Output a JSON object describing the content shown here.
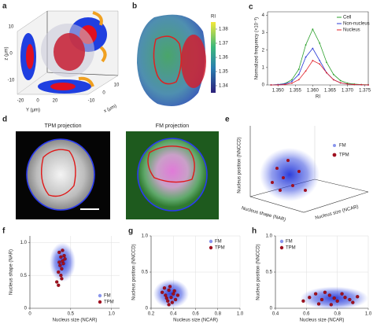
{
  "panel_a": {
    "label": "a",
    "z_label": "z (μm)",
    "y_label": "Y (μm)",
    "x_label": "x (μm)",
    "z_ticks": [
      10,
      0,
      -10
    ],
    "y_ticks": [
      -20,
      0,
      20
    ],
    "x_ticks": [
      -10,
      0,
      10
    ]
  },
  "panel_b": {
    "label": "b",
    "colorbar_label": "RI",
    "colorbar_lim": [
      1.335,
      1.385
    ],
    "colorbar_ticks": [
      1.38,
      1.37,
      1.36,
      1.35,
      1.34
    ]
  },
  "panel_d": {
    "label": "d",
    "titles": [
      "TPM projection",
      "FM projection"
    ]
  },
  "panel_e": {
    "label": "e",
    "z_label": "Nucleus position (NNCCD)",
    "y_label": "Nucleus shape (NAR)",
    "x_label": "Nucleus size (NCAR)",
    "legend": [
      "FM",
      "TPM"
    ]
  },
  "chart_data": [
    {
      "type": "line",
      "label": "c",
      "ylabel": "Normalized frequency (×10⁻³)",
      "xlabel": "RI",
      "x": [
        1.348,
        1.35,
        1.352,
        1.354,
        1.356,
        1.358,
        1.36,
        1.362,
        1.364,
        1.366,
        1.368,
        1.37,
        1.372,
        1.374,
        1.376
      ],
      "series": [
        {
          "name": "Cell",
          "color": "#2ca02c",
          "values": [
            0,
            0.02,
            0.08,
            0.3,
            0.9,
            2.3,
            3.2,
            2.4,
            1.3,
            0.6,
            0.25,
            0.1,
            0.05,
            0.02,
            0.01
          ]
        },
        {
          "name": "Non-nucleus",
          "color": "#2b3bd6",
          "values": [
            0,
            0.02,
            0.06,
            0.2,
            0.6,
            1.6,
            2.1,
            1.4,
            0.7,
            0.3,
            0.12,
            0.05,
            0.02,
            0.01,
            0
          ]
        },
        {
          "name": "Nucleus",
          "color": "#e0202a",
          "values": [
            0,
            0,
            0.02,
            0.1,
            0.3,
            0.8,
            1.4,
            1.2,
            0.7,
            0.3,
            0.12,
            0.05,
            0.02,
            0.01,
            0
          ]
        }
      ],
      "xlim": [
        1.347,
        1.376
      ],
      "ylim": [
        0,
        4.2
      ],
      "xticks": [
        {
          "value": 1.35,
          "label": "1.350"
        },
        1.355,
        {
          "value": 1.36,
          "label": "1.360"
        },
        1.365,
        {
          "value": 1.37,
          "label": "1.370"
        },
        1.375
      ],
      "yticks": [
        0,
        1,
        2,
        3,
        4
      ],
      "grid": false,
      "legend": "top-right"
    },
    {
      "type": "scatter",
      "label": "f",
      "xlabel": "Nucleus size (NCAR)",
      "ylabel": "Nucleus shape (NAR)",
      "xlim": [
        0,
        1.1
      ],
      "ylim": [
        0,
        1.1
      ],
      "xticks": [
        0,
        0.5,
        {
          "value": 1,
          "label": "1.0"
        }
      ],
      "yticks": [
        0,
        0.5,
        {
          "value": 1,
          "label": "1.0"
        }
      ],
      "grid": true,
      "legend": "bottom-right",
      "series": [
        {
          "name": "FM",
          "color": "#3b4fe0"
        },
        {
          "name": "TPM",
          "color": "#a01020",
          "x": [
            0.36,
            0.38,
            0.4,
            0.42,
            0.37,
            0.39,
            0.41,
            0.35,
            0.43,
            0.38,
            0.4,
            0.36,
            0.39,
            0.33,
            0.35
          ],
          "values": [
            0.85,
            0.78,
            0.72,
            0.8,
            0.65,
            0.6,
            0.68,
            0.55,
            0.75,
            0.5,
            0.88,
            0.7,
            0.45,
            0.4,
            0.35
          ]
        }
      ]
    },
    {
      "type": "scatter",
      "label": "g",
      "xlabel": "Nucleus size (NCAR)",
      "ylabel": "Nucleus position (NNCCD)",
      "xlim": [
        0.2,
        1.0
      ],
      "ylim": [
        0,
        1.0
      ],
      "xticks": [
        0.2,
        0.4,
        0.6,
        0.8,
        {
          "value": 1,
          "label": "1.0"
        }
      ],
      "yticks": [
        0,
        0.5,
        {
          "value": 1,
          "label": "1.0"
        }
      ],
      "grid": true,
      "legend": "top-right",
      "series": [
        {
          "name": "FM",
          "color": "#3b4fe0"
        },
        {
          "name": "TPM",
          "color": "#a01020",
          "x": [
            0.3,
            0.33,
            0.36,
            0.38,
            0.4,
            0.42,
            0.35,
            0.32,
            0.37,
            0.44,
            0.39,
            0.34,
            0.41,
            0.36
          ],
          "values": [
            0.22,
            0.18,
            0.25,
            0.15,
            0.2,
            0.12,
            0.1,
            0.28,
            0.3,
            0.18,
            0.08,
            0.14,
            0.24,
            0.05
          ]
        }
      ]
    },
    {
      "type": "scatter",
      "label": "h",
      "xlabel": "Nucleus size (NCAR)",
      "ylabel": "Nucleus position (NNCCD)",
      "xlim": [
        0.4,
        1.0
      ],
      "ylim": [
        0,
        1.0
      ],
      "xticks": [
        0.4,
        0.6,
        0.8,
        {
          "value": 1,
          "label": "1.0"
        }
      ],
      "yticks": [
        0,
        0.5,
        {
          "value": 1,
          "label": "1.0"
        }
      ],
      "grid": true,
      "legend": "top-left",
      "series": [
        {
          "name": "FM",
          "color": "#3b4fe0"
        },
        {
          "name": "TPM",
          "color": "#a01020",
          "x": [
            0.62,
            0.66,
            0.7,
            0.75,
            0.8,
            0.85,
            0.9,
            0.72,
            0.78,
            0.83,
            0.88,
            0.68,
            0.93,
            0.76,
            0.58
          ],
          "values": [
            0.15,
            0.2,
            0.12,
            0.18,
            0.1,
            0.15,
            0.08,
            0.22,
            0.14,
            0.2,
            0.12,
            0.06,
            0.16,
            0.05,
            0.1
          ]
        }
      ]
    }
  ]
}
